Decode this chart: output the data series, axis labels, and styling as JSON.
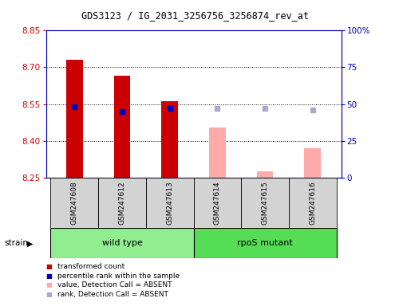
{
  "title": "GDS3123 / IG_2031_3256756_3256874_rev_at",
  "samples": [
    "GSM247608",
    "GSM247612",
    "GSM247613",
    "GSM247614",
    "GSM247615",
    "GSM247616"
  ],
  "groups": [
    {
      "name": "wild type",
      "samples": [
        0,
        1,
        2
      ],
      "color": "#90ee90"
    },
    {
      "name": "rpoS mutant",
      "samples": [
        3,
        4,
        5
      ],
      "color": "#55dd55"
    }
  ],
  "group_label": "strain",
  "ymin": 8.25,
  "ymax": 8.85,
  "yticks": [
    8.25,
    8.4,
    8.55,
    8.7,
    8.85
  ],
  "y2min": 0,
  "y2max": 100,
  "y2ticks": [
    0,
    25,
    50,
    75,
    100
  ],
  "bar_bottom": 8.25,
  "bar_width": 0.35,
  "transformed_counts": [
    8.73,
    8.665,
    8.56,
    null,
    null,
    null
  ],
  "transformed_count_color": "#cc0000",
  "percentile_ranks": [
    48,
    45,
    47,
    null,
    null,
    null
  ],
  "percentile_rank_color": "#0000bb",
  "absent_values": [
    null,
    null,
    null,
    8.455,
    8.275,
    8.37
  ],
  "absent_value_color": "#ffaaaa",
  "absent_ranks": [
    null,
    null,
    null,
    47,
    47,
    46
  ],
  "absent_rank_color": "#aaaacc",
  "legend_items": [
    {
      "color": "#cc0000",
      "label": "transformed count"
    },
    {
      "color": "#0000bb",
      "label": "percentile rank within the sample"
    },
    {
      "color": "#ffaaaa",
      "label": "value, Detection Call = ABSENT"
    },
    {
      "color": "#aaaacc",
      "label": "rank, Detection Call = ABSENT"
    }
  ]
}
